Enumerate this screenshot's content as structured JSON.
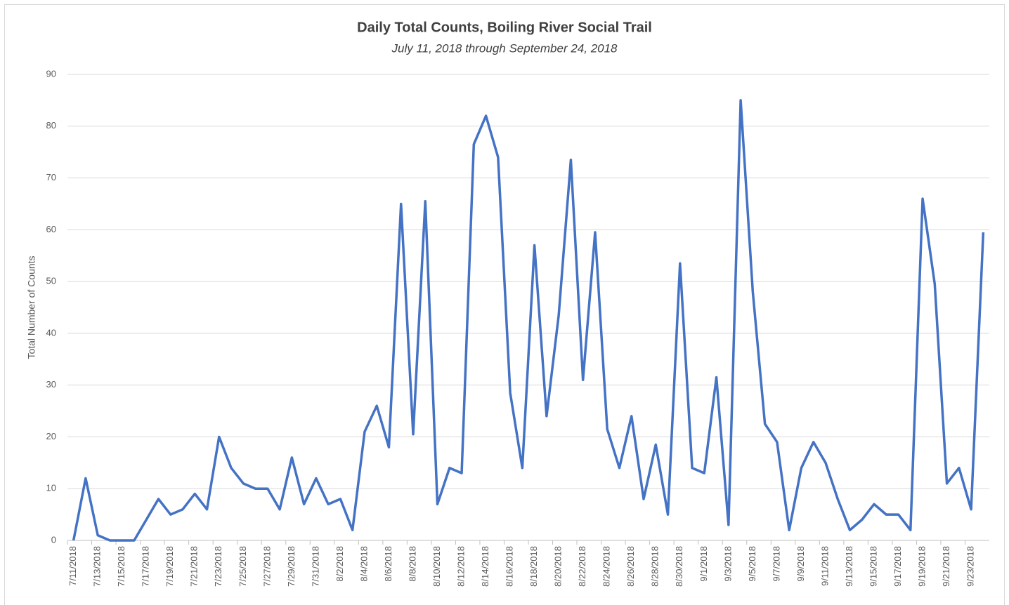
{
  "chart_data": {
    "type": "line",
    "title": "Daily Total Counts, Boiling River Social Trail",
    "subtitle": "July 11, 2018 through September 24, 2018",
    "y_label": "Total Number of Counts",
    "categories": [
      "7/11/2018",
      null,
      "7/13/2018",
      null,
      "7/15/2018",
      null,
      "7/17/2018",
      null,
      "7/19/2018",
      null,
      "7/21/2018",
      null,
      "7/23/2018",
      null,
      "7/25/2018",
      null,
      "7/27/2018",
      null,
      "7/29/2018",
      null,
      "7/31/2018",
      null,
      "8/2/2018",
      null,
      "8/4/2018",
      null,
      "8/6/2018",
      null,
      "8/8/2018",
      null,
      "8/10/2018",
      null,
      "8/12/2018",
      null,
      "8/14/2018",
      null,
      "8/16/2018",
      null,
      "8/18/2018",
      null,
      "8/20/2018",
      null,
      "8/22/2018",
      null,
      "8/24/2018",
      null,
      "8/26/2018",
      null,
      "8/28/2018",
      null,
      "8/30/2018",
      null,
      "9/1/2018",
      null,
      "9/3/2018",
      null,
      "9/5/2018",
      null,
      "9/7/2018",
      null,
      "9/9/2018",
      null,
      "9/11/2018",
      null,
      "9/13/2018",
      null,
      "9/15/2018",
      null,
      "9/17/2018",
      null,
      "9/19/2018",
      null,
      "9/21/2018",
      null,
      "9/23/2018",
      null
    ],
    "values": [
      0,
      12,
      1,
      0,
      0,
      0,
      4,
      8,
      5,
      6,
      9,
      6,
      20,
      14,
      11,
      10,
      10,
      6,
      16,
      7,
      12,
      7,
      8,
      2,
      21,
      26,
      18,
      65,
      20.5,
      65.5,
      7,
      14,
      13,
      76.5,
      82,
      74,
      28.5,
      14,
      57,
      24,
      43.5,
      73.5,
      31,
      59.5,
      21.5,
      14,
      24,
      8,
      18.5,
      5,
      53.5,
      14,
      13,
      31.5,
      3,
      85,
      48,
      22.5,
      19,
      2,
      14,
      19,
      15,
      8,
      2,
      4,
      7,
      5,
      5,
      2,
      66,
      49.5,
      11,
      14,
      6,
      59.5
    ],
    "color": "#4472c4",
    "ylim": [
      0,
      90
    ],
    "yticks": [
      0,
      10,
      20,
      30,
      40,
      50,
      60,
      70,
      80,
      90
    ],
    "grid": true
  }
}
